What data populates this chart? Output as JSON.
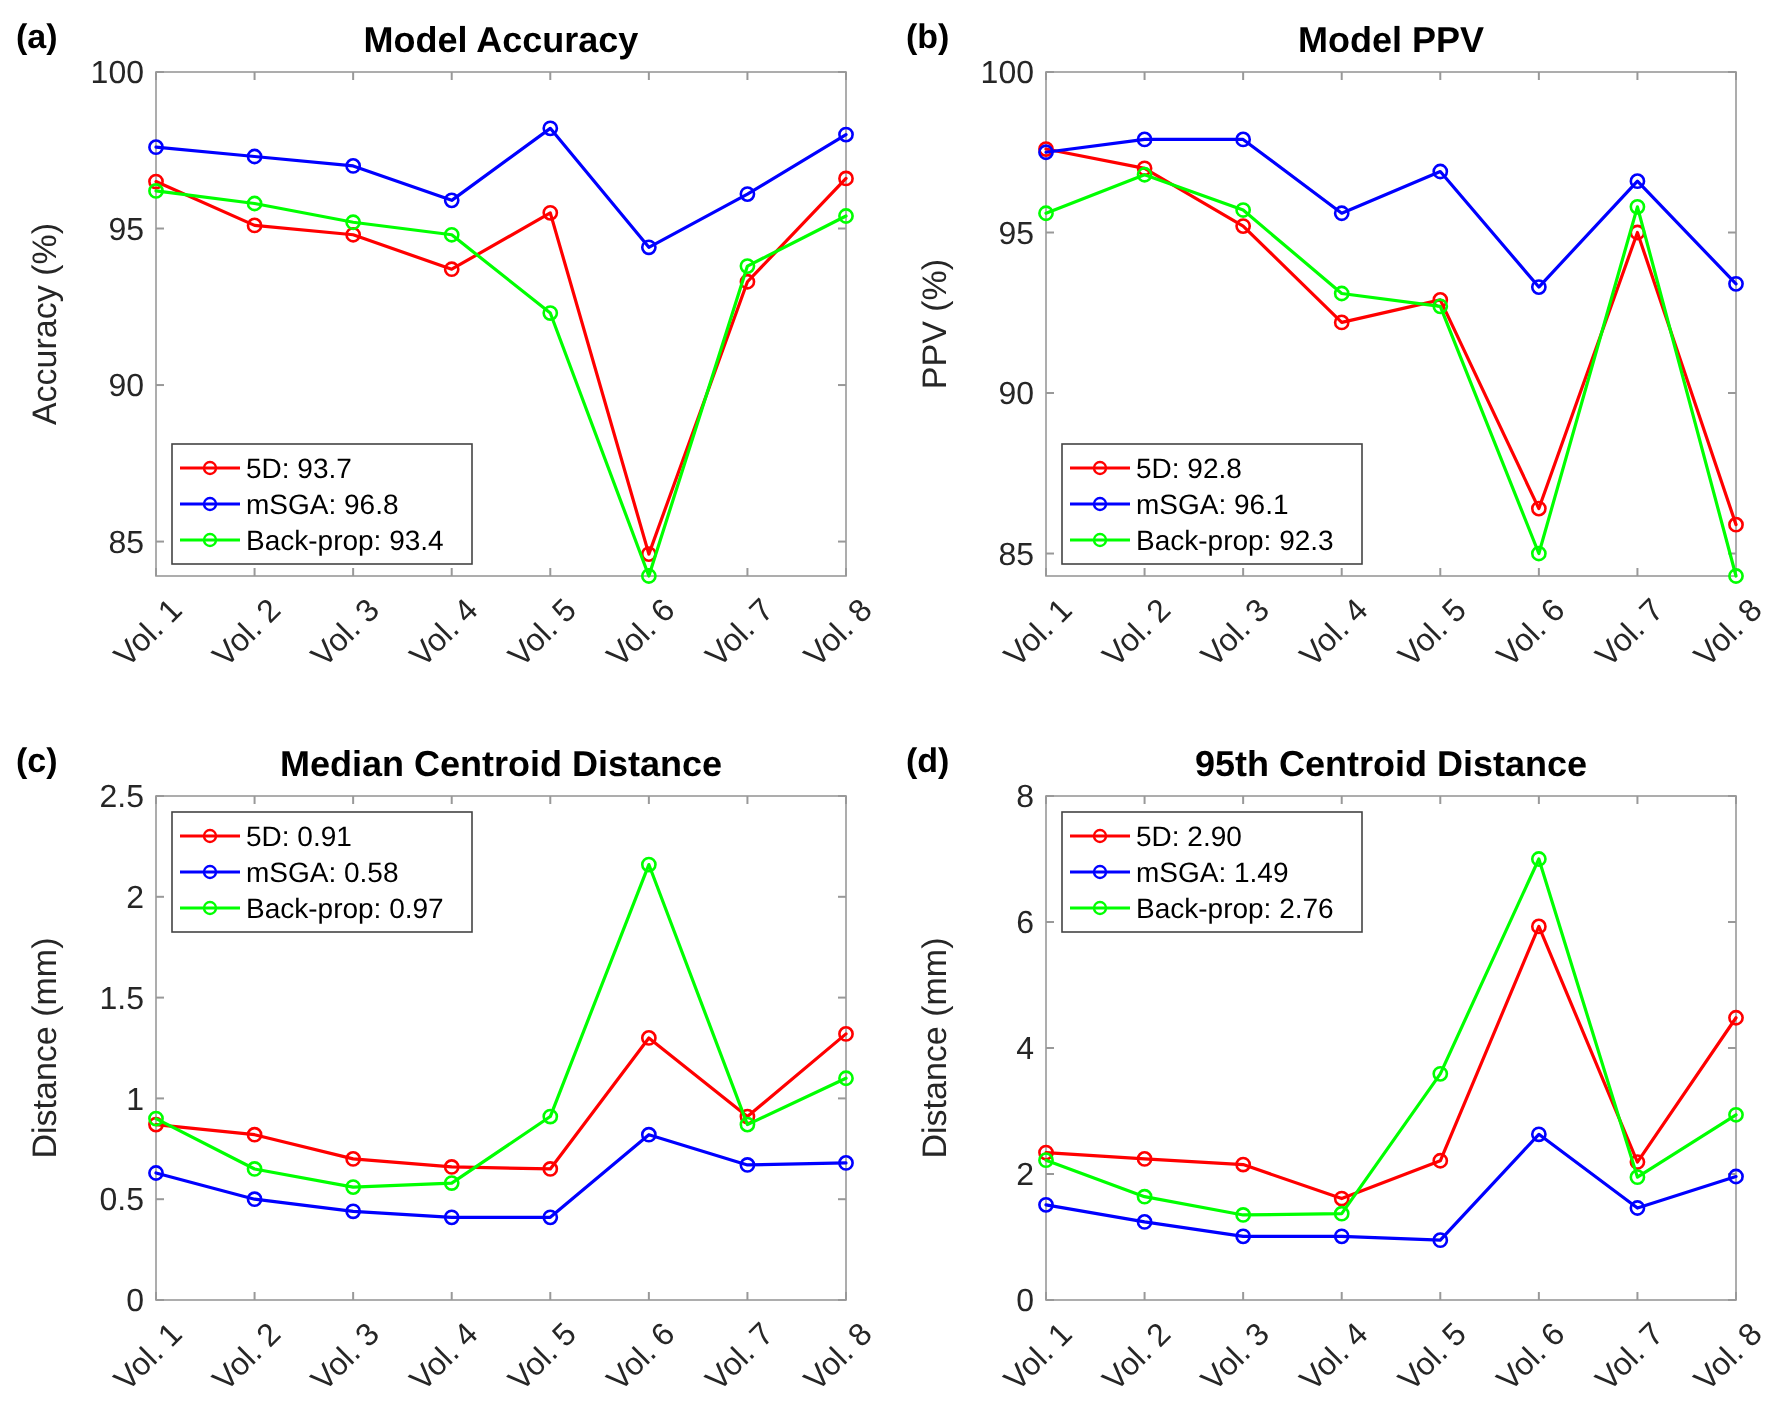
{
  "chart_data": [
    {
      "type": "line",
      "title": "Model Accuracy",
      "ylabel": "Accuracy (%)",
      "annotations": [
        "(a)"
      ],
      "categories": [
        "Vol. 1",
        "Vol. 2",
        "Vol. 3",
        "Vol. 4",
        "Vol. 5",
        "Vol. 6",
        "Vol. 7",
        "Vol. 8"
      ],
      "ylim": [
        83.9,
        100
      ],
      "yticks": [
        85,
        90,
        95,
        100
      ],
      "grid": false,
      "legend": "bottom left",
      "marker": "circle",
      "line_style": "solid",
      "series": [
        {
          "name": "5D: 93.7",
          "color": "#ff0000",
          "values": [
            96.5,
            95.1,
            94.8,
            93.7,
            95.5,
            84.6,
            93.3,
            96.6
          ]
        },
        {
          "name": "mSGA: 96.8",
          "color": "#0000ff",
          "values": [
            97.6,
            97.3,
            97.0,
            95.9,
            98.2,
            94.4,
            96.1,
            98.0
          ]
        },
        {
          "name": "Back-prop: 93.4",
          "color": "#00ff00",
          "values": [
            96.2,
            95.8,
            95.2,
            94.8,
            92.3,
            83.9,
            93.8,
            95.4
          ]
        }
      ]
    },
    {
      "type": "line",
      "title": "Model PPV",
      "ylabel": "PPV (%)",
      "annotations": [
        "(b)"
      ],
      "categories": [
        "Vol. 1",
        "Vol. 2",
        "Vol. 3",
        "Vol. 4",
        "Vol. 5",
        "Vol. 6",
        "Vol. 7",
        "Vol. 8"
      ],
      "ylim": [
        84.3,
        100
      ],
      "yticks": [
        85,
        90,
        95,
        100
      ],
      "grid": false,
      "legend": "bottom left",
      "marker": "circle",
      "line_style": "solid",
      "series": [
        {
          "name": "5D: 92.8",
          "color": "#ff0000",
          "values": [
            97.6,
            97.0,
            95.2,
            92.2,
            92.9,
            86.4,
            95.0,
            85.9
          ]
        },
        {
          "name": "mSGA: 96.1",
          "color": "#0000ff",
          "values": [
            97.5,
            97.9,
            97.9,
            95.6,
            96.9,
            93.3,
            96.6,
            93.4
          ]
        },
        {
          "name": "Back-prop: 92.3",
          "color": "#00ff00",
          "values": [
            95.6,
            96.8,
            95.7,
            93.1,
            92.7,
            85.0,
            95.8,
            84.3
          ]
        }
      ]
    },
    {
      "type": "line",
      "title": "Median Centroid Distance",
      "ylabel": "Distance (mm)",
      "annotations": [
        "(c)"
      ],
      "categories": [
        "Vol. 1",
        "Vol. 2",
        "Vol. 3",
        "Vol. 4",
        "Vol. 5",
        "Vol. 6",
        "Vol. 7",
        "Vol. 8"
      ],
      "ylim": [
        0,
        2.5
      ],
      "yticks": [
        0,
        0.5,
        1,
        1.5,
        2,
        2.5
      ],
      "grid": false,
      "legend": "top left",
      "marker": "circle",
      "line_style": "solid",
      "series": [
        {
          "name": "5D: 0.91",
          "color": "#ff0000",
          "values": [
            0.87,
            0.82,
            0.7,
            0.66,
            0.65,
            1.3,
            0.91,
            1.32
          ]
        },
        {
          "name": "mSGA: 0.58",
          "color": "#0000ff",
          "values": [
            0.63,
            0.5,
            0.44,
            0.41,
            0.41,
            0.82,
            0.67,
            0.68
          ]
        },
        {
          "name": "Back-prop: 0.97",
          "color": "#00ff00",
          "values": [
            0.9,
            0.65,
            0.56,
            0.58,
            0.91,
            2.16,
            0.87,
            1.1
          ]
        }
      ]
    },
    {
      "type": "line",
      "title": "95th Centroid Distance",
      "ylabel": "Distance (mm)",
      "annotations": [
        "(d)"
      ],
      "categories": [
        "Vol. 1",
        "Vol. 2",
        "Vol. 3",
        "Vol. 4",
        "Vol. 5",
        "Vol. 6",
        "Vol. 7",
        "Vol. 8"
      ],
      "ylim": [
        0,
        8
      ],
      "yticks": [
        0,
        2,
        4,
        6,
        8
      ],
      "grid": false,
      "legend": "top left",
      "marker": "circle",
      "line_style": "solid",
      "series": [
        {
          "name": "5D: 2.90",
          "color": "#ff0000",
          "values": [
            2.34,
            2.24,
            2.15,
            1.61,
            2.21,
            5.93,
            2.19,
            4.48
          ]
        },
        {
          "name": "mSGA: 1.49",
          "color": "#0000ff",
          "values": [
            1.51,
            1.24,
            1.01,
            1.01,
            0.95,
            2.63,
            1.46,
            1.96
          ]
        },
        {
          "name": "Back-prop: 2.76",
          "color": "#00ff00",
          "values": [
            2.22,
            1.64,
            1.35,
            1.37,
            3.59,
            7.0,
            1.95,
            2.94
          ]
        }
      ]
    }
  ]
}
